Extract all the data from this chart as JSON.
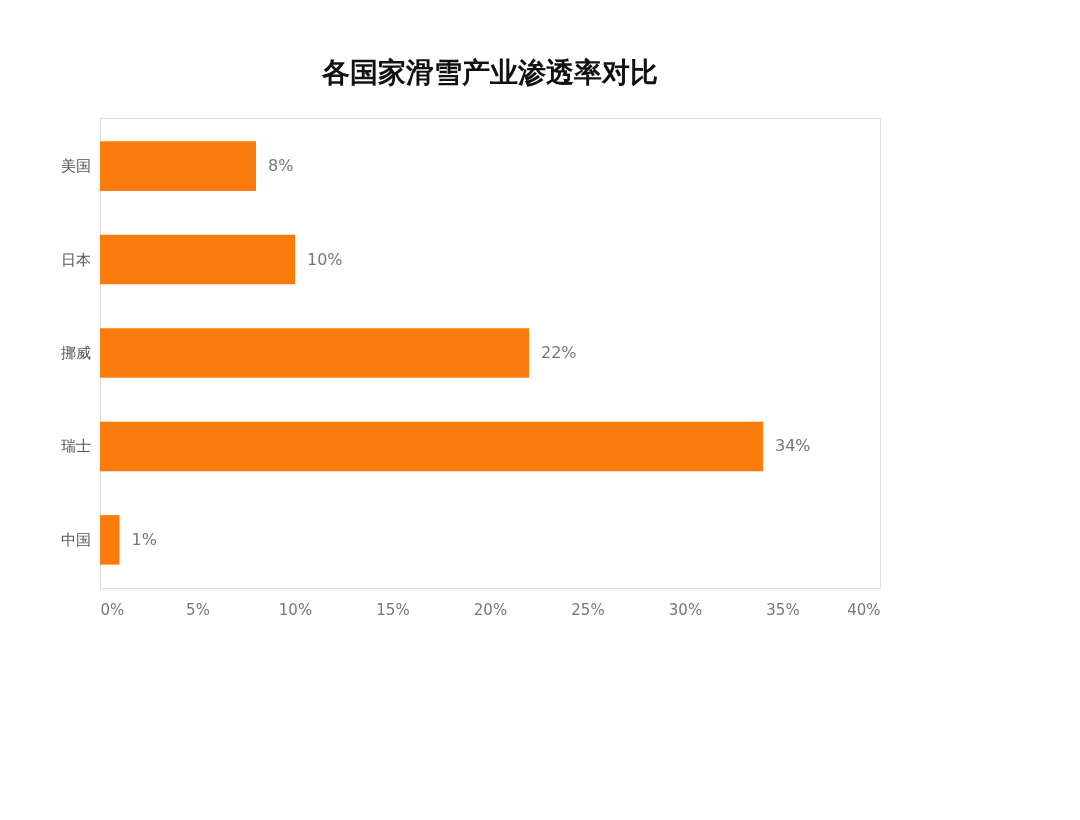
{
  "chart_data": {
    "type": "bar",
    "orientation": "horizontal",
    "title": "各国家滑雪产业渗透率对比",
    "categories": [
      "美国",
      "日本",
      "挪威",
      "瑞士",
      "中国"
    ],
    "values": [
      8,
      10,
      22,
      34,
      1
    ],
    "value_labels": [
      "8%",
      "10%",
      "22%",
      "34%",
      "1%"
    ],
    "color": "#f97c0c",
    "xlim": [
      0,
      40
    ],
    "xticks": [
      {
        "value": 0,
        "label": "0%"
      },
      {
        "value": 5,
        "label": "5%"
      },
      {
        "value": 10,
        "label": "10%"
      },
      {
        "value": 15,
        "label": "15%"
      },
      {
        "value": 20,
        "label": "20%"
      },
      {
        "value": 25,
        "label": "25%"
      },
      {
        "value": 30,
        "label": "30%"
      },
      {
        "value": 35,
        "label": "35%"
      },
      {
        "value": 40,
        "label": "40%"
      }
    ],
    "grid": false
  }
}
